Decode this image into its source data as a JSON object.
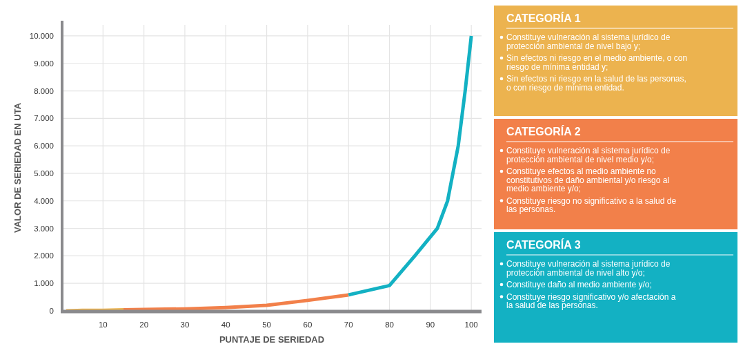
{
  "chart_data": [
    {
      "type": "line",
      "xlabel": "PUNTAJE DE SERIEDAD",
      "ylabel": "VALOR DE SERIEDAD EN UTA",
      "series": [
        {
          "color": "#ecb34f",
          "x": [
            1,
            5,
            10,
            15
          ],
          "values": [
            0,
            20,
            20,
            40
          ]
        },
        {
          "color": "#f2804a",
          "x": [
            15,
            20,
            30,
            40,
            50,
            60,
            70
          ],
          "values": [
            40,
            50,
            70,
            120,
            200,
            380,
            580
          ]
        },
        {
          "color": "#13b1c3",
          "x": [
            70,
            80,
            86.2,
            91.7,
            94.2,
            96.8,
            98.5,
            100
          ],
          "values": [
            580,
            920,
            2000,
            3000,
            4000,
            6000,
            8000,
            10000
          ]
        }
      ],
      "xlim": [
        0,
        102.5
      ],
      "ylim": [
        0,
        10400
      ],
      "xticks": [
        10,
        20,
        30,
        40,
        50,
        60,
        70,
        80,
        90,
        100
      ],
      "yticks": [
        0,
        {
          "value": 1000,
          "label": "1.000"
        },
        {
          "value": 2000,
          "label": "2.000"
        },
        {
          "value": 3000,
          "label": "3.000"
        },
        {
          "value": 4000,
          "label": "4.000"
        },
        {
          "value": 5000,
          "label": "5.000"
        },
        {
          "value": 6000,
          "label": "6.000"
        },
        {
          "value": 7000,
          "label": "7.000"
        },
        {
          "value": 8000,
          "label": "8.000"
        },
        {
          "value": 9000,
          "label": "9.000"
        },
        {
          "value": 10000,
          "label": "10.000"
        }
      ],
      "grid": true,
      "marker": "none",
      "line_style": "solid"
    },
    {
      "type": "other",
      "categories": [
        "CATEGORÍA 1",
        "CATEGORÍA 2",
        "CATEGORÍA 3"
      ],
      "colors": [
        "#ecb34f",
        "#f2804a",
        "#13b1c3"
      ],
      "annotations": [
        "Constituye vulneración al sistema jurídico de protección ambiental de nivel bajo y;",
        "Sin efectos ni riesgo en el medio ambiente, o con riesgo de mínima entidad y;",
        "Sin efectos ni riesgo en la salud de las personas, o con riesgo de mínima entidad.",
        "Constituye vulneración al sistema jurídico de protección ambiental de nivel medio y/o;",
        "Constituye efectos al medio ambiente no constitutivos de daño ambiental y/o riesgo al medio ambiente y/o;",
        "Constituye riesgo no significativo a la salud de las personas.",
        "Constituye vulneración al sistema jurídico de protección ambiental de nivel alto y/o;",
        "Constituye daño al medio ambiente y/o;",
        "Constituye riesgo significativo y/o afectación a la salud de las personas."
      ]
    }
  ]
}
